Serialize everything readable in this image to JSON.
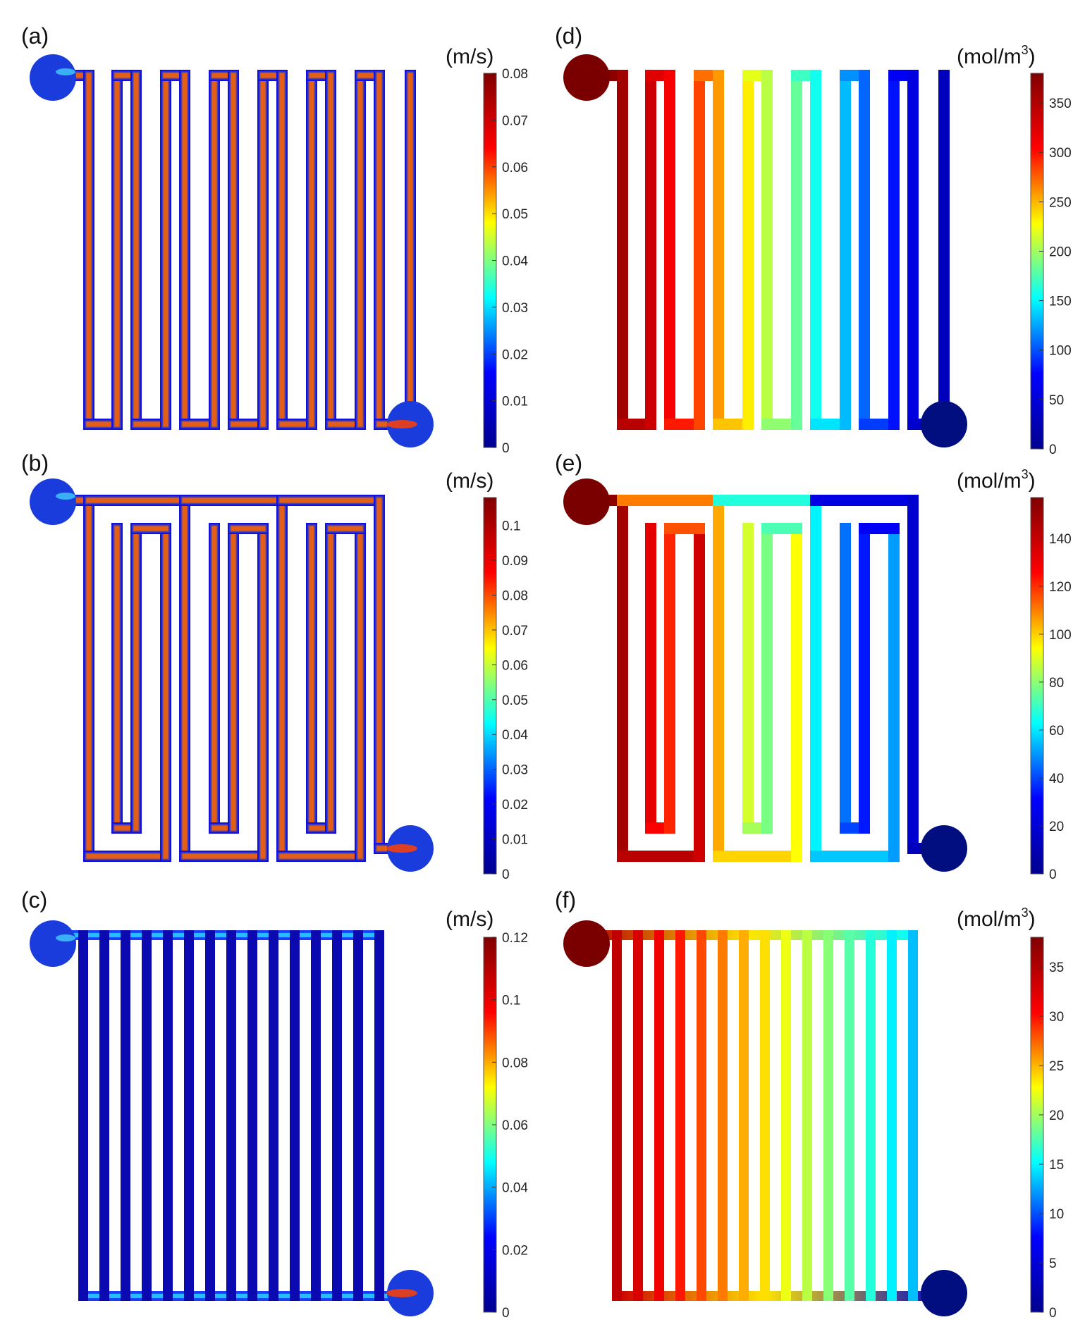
{
  "figure": {
    "colormap": [
      "#00008f",
      "#0000ff",
      "#00ffff",
      "#ffff00",
      "#ff0000",
      "#800000"
    ],
    "panels": [
      {
        "id": "a",
        "label": "(a)",
        "design": "serpentine",
        "field": "velocity",
        "unit_main": "(m/s)",
        "unit_sup": "",
        "colorbar": {
          "min": 0,
          "max": 0.08,
          "ticks": [
            "0",
            "0.01",
            "0.02",
            "0.03",
            "0.04",
            "0.05",
            "0.06",
            "0.07",
            "0.08"
          ]
        }
      },
      {
        "id": "b",
        "label": "(b)",
        "design": "parallel-serpentine",
        "field": "velocity",
        "unit_main": "(m/s)",
        "unit_sup": "",
        "colorbar": {
          "min": 0,
          "max": 0.108,
          "ticks": [
            "0",
            "0.01",
            "0.02",
            "0.03",
            "0.04",
            "0.05",
            "0.06",
            "0.07",
            "0.08",
            "0.09",
            "0.1"
          ]
        }
      },
      {
        "id": "c",
        "label": "(c)",
        "design": "parallel",
        "field": "velocity",
        "unit_main": "(m/s)",
        "unit_sup": "",
        "colorbar": {
          "min": 0,
          "max": 0.12,
          "ticks": [
            "0",
            "0.02",
            "0.04",
            "0.06",
            "0.08",
            "0.1",
            "0.12"
          ]
        }
      },
      {
        "id": "d",
        "label": "(d)",
        "design": "serpentine",
        "field": "concentration",
        "unit_main": "(mol/m",
        "unit_sup": "3",
        "unit_close": ")",
        "colorbar": {
          "min": 0,
          "max": 380,
          "ticks": [
            "0",
            "50",
            "100",
            "150",
            "200",
            "250",
            "300",
            "350"
          ]
        }
      },
      {
        "id": "e",
        "label": "(e)",
        "design": "parallel-serpentine",
        "field": "concentration",
        "unit_main": "(mol/m",
        "unit_sup": "3",
        "unit_close": ")",
        "colorbar": {
          "min": 0,
          "max": 157,
          "ticks": [
            "0",
            "20",
            "40",
            "60",
            "80",
            "100",
            "120",
            "140"
          ]
        }
      },
      {
        "id": "f",
        "label": "(f)",
        "design": "parallel",
        "field": "concentration",
        "unit_main": "(mol/m",
        "unit_sup": "3",
        "unit_close": ")",
        "colorbar": {
          "min": 0,
          "max": 38,
          "ticks": [
            "0",
            "5",
            "10",
            "15",
            "20",
            "25",
            "30",
            "35"
          ]
        }
      }
    ]
  }
}
